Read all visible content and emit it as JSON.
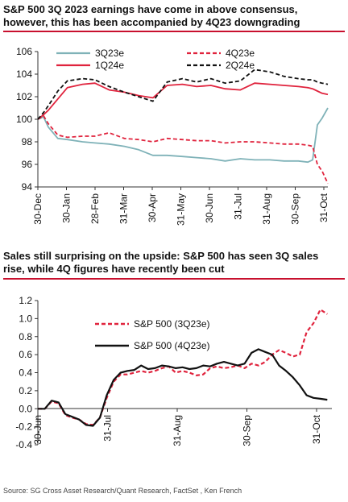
{
  "panel1": {
    "title_line1": "S&P 500 3Q 2023 earnings have come in above consensus,",
    "title_line2": "however, this has been accompanied by 4Q23 downgrading"
  },
  "panel2": {
    "title_line1": "Sales still surprising on the upside: S&P 500 has seen 3Q sales",
    "title_line2": "rise, while 4Q figures have recently been cut"
  },
  "source": "Source: SG Cross Asset Research/Quant Research, FactSet , Ken French",
  "colors": {
    "teal": "#7fb2b8",
    "red": "#e0233d",
    "black": "#111111",
    "accent": "#c8102e"
  },
  "chart_data": [
    {
      "type": "line",
      "xlim": [
        "2022-12-30",
        "2023-10-31"
      ],
      "ylim": [
        94,
        106
      ],
      "yticks": [
        94,
        96,
        98,
        100,
        102,
        104,
        106
      ],
      "xtick_labels": [
        "30-Dec",
        "30-Jan",
        "28-Feb",
        "31-Mar",
        "30-Apr",
        "31-May",
        "30-Jun",
        "31-Jul",
        "31-Aug",
        "30-Sep",
        "31-Oct"
      ],
      "grid": false,
      "legend_position": "top",
      "series": [
        {
          "name": "3Q23e",
          "color": "#7fb2b8",
          "dash": "solid",
          "x": [
            "2022-12-30",
            "2023-01-05",
            "2023-01-10",
            "2023-01-20",
            "2023-01-30",
            "2023-02-15",
            "2023-02-28",
            "2023-03-15",
            "2023-03-31",
            "2023-04-15",
            "2023-04-30",
            "2023-05-15",
            "2023-05-31",
            "2023-06-15",
            "2023-06-30",
            "2023-07-15",
            "2023-07-31",
            "2023-08-15",
            "2023-08-31",
            "2023-09-15",
            "2023-09-30",
            "2023-10-10",
            "2023-10-15",
            "2023-10-20",
            "2023-10-25",
            "2023-10-31"
          ],
          "y": [
            100.0,
            100.2,
            99.3,
            98.3,
            98.2,
            98.0,
            97.9,
            97.8,
            97.6,
            97.3,
            96.8,
            96.8,
            96.7,
            96.6,
            96.5,
            96.3,
            96.5,
            96.4,
            96.4,
            96.3,
            96.3,
            96.2,
            96.4,
            99.5,
            100.1,
            101.0
          ]
        },
        {
          "name": "4Q23e",
          "color": "#e0233d",
          "dash": "dashed",
          "x": [
            "2022-12-30",
            "2023-01-05",
            "2023-01-10",
            "2023-01-20",
            "2023-01-30",
            "2023-02-15",
            "2023-02-28",
            "2023-03-15",
            "2023-03-31",
            "2023-04-15",
            "2023-04-30",
            "2023-05-15",
            "2023-05-31",
            "2023-06-15",
            "2023-06-30",
            "2023-07-15",
            "2023-07-31",
            "2023-08-15",
            "2023-08-31",
            "2023-09-15",
            "2023-09-30",
            "2023-10-10",
            "2023-10-15",
            "2023-10-20",
            "2023-10-25",
            "2023-10-31"
          ],
          "y": [
            100.0,
            100.3,
            99.6,
            98.6,
            98.4,
            98.5,
            98.5,
            98.8,
            98.3,
            98.2,
            98.0,
            98.3,
            98.2,
            98.1,
            98.1,
            97.9,
            98.0,
            98.0,
            97.9,
            97.8,
            97.8,
            97.7,
            97.6,
            96.0,
            95.4,
            94.3
          ]
        },
        {
          "name": "1Q24e",
          "color": "#e0233d",
          "dash": "solid",
          "x": [
            "2022-12-30",
            "2023-01-05",
            "2023-01-10",
            "2023-01-20",
            "2023-01-30",
            "2023-02-15",
            "2023-02-28",
            "2023-03-15",
            "2023-03-31",
            "2023-04-15",
            "2023-04-30",
            "2023-05-15",
            "2023-05-31",
            "2023-06-15",
            "2023-06-30",
            "2023-07-15",
            "2023-07-31",
            "2023-08-15",
            "2023-08-31",
            "2023-09-15",
            "2023-09-30",
            "2023-10-10",
            "2023-10-15",
            "2023-10-20",
            "2023-10-25",
            "2023-10-31"
          ],
          "y": [
            100.0,
            100.4,
            100.8,
            101.8,
            102.8,
            103.1,
            103.2,
            102.6,
            102.4,
            102.1,
            101.9,
            103.0,
            103.1,
            102.9,
            103.0,
            102.7,
            102.6,
            103.2,
            103.1,
            103.0,
            102.9,
            102.8,
            102.7,
            102.5,
            102.3,
            102.2
          ]
        },
        {
          "name": "2Q24e",
          "color": "#111111",
          "dash": "dashed",
          "x": [
            "2022-12-30",
            "2023-01-05",
            "2023-01-10",
            "2023-01-20",
            "2023-01-30",
            "2023-02-15",
            "2023-02-28",
            "2023-03-15",
            "2023-03-31",
            "2023-04-15",
            "2023-04-30",
            "2023-05-15",
            "2023-05-31",
            "2023-06-15",
            "2023-06-30",
            "2023-07-15",
            "2023-07-31",
            "2023-08-15",
            "2023-08-31",
            "2023-09-15",
            "2023-09-30",
            "2023-10-10",
            "2023-10-15",
            "2023-10-20",
            "2023-10-25",
            "2023-10-31"
          ],
          "y": [
            100.0,
            100.6,
            101.2,
            102.5,
            103.4,
            103.6,
            103.5,
            102.9,
            102.4,
            102.0,
            101.6,
            103.3,
            103.6,
            103.3,
            103.6,
            103.2,
            103.4,
            104.4,
            104.2,
            103.8,
            103.6,
            103.5,
            103.5,
            103.3,
            103.2,
            103.1
          ]
        }
      ]
    },
    {
      "type": "line",
      "xlim": [
        "2023-06-30",
        "2023-11-05"
      ],
      "ylim": [
        -0.4,
        1.2
      ],
      "yticks": [
        -0.4,
        -0.2,
        0.0,
        0.2,
        0.4,
        0.6,
        0.8,
        1.0,
        1.2
      ],
      "xtick_labels": [
        "30-Jun",
        "31-Jul",
        "31-Aug",
        "30-Sep",
        "31-Oct"
      ],
      "grid": false,
      "legend_position": "upper-left",
      "series": [
        {
          "name": "S&P 500 (3Q23e)",
          "color": "#e0233d",
          "dash": "dashed",
          "x": [
            "2023-06-30",
            "2023-07-03",
            "2023-07-06",
            "2023-07-09",
            "2023-07-12",
            "2023-07-15",
            "2023-07-18",
            "2023-07-21",
            "2023-07-24",
            "2023-07-27",
            "2023-07-30",
            "2023-08-02",
            "2023-08-05",
            "2023-08-08",
            "2023-08-11",
            "2023-08-14",
            "2023-08-17",
            "2023-08-20",
            "2023-08-23",
            "2023-08-26",
            "2023-08-29",
            "2023-09-01",
            "2023-09-04",
            "2023-09-07",
            "2023-09-10",
            "2023-09-13",
            "2023-09-16",
            "2023-09-19",
            "2023-09-22",
            "2023-09-25",
            "2023-09-28",
            "2023-10-01",
            "2023-10-04",
            "2023-10-07",
            "2023-10-10",
            "2023-10-13",
            "2023-10-16",
            "2023-10-19",
            "2023-10-22",
            "2023-10-25",
            "2023-10-28",
            "2023-10-31",
            "2023-11-03"
          ],
          "y": [
            0.0,
            0.0,
            0.08,
            0.06,
            -0.07,
            -0.1,
            -0.12,
            -0.17,
            -0.18,
            -0.1,
            0.12,
            0.3,
            0.38,
            0.38,
            0.4,
            0.42,
            0.4,
            0.42,
            0.45,
            0.47,
            0.4,
            0.42,
            0.4,
            0.37,
            0.38,
            0.45,
            0.47,
            0.45,
            0.46,
            0.48,
            0.45,
            0.5,
            0.48,
            0.52,
            0.6,
            0.65,
            0.62,
            0.58,
            0.6,
            0.85,
            0.95,
            1.1,
            1.05
          ]
        },
        {
          "name": "S&P 500 (4Q23e)",
          "color": "#111111",
          "dash": "solid",
          "x": [
            "2023-06-30",
            "2023-07-03",
            "2023-07-06",
            "2023-07-09",
            "2023-07-12",
            "2023-07-15",
            "2023-07-18",
            "2023-07-21",
            "2023-07-24",
            "2023-07-27",
            "2023-07-30",
            "2023-08-02",
            "2023-08-05",
            "2023-08-08",
            "2023-08-11",
            "2023-08-14",
            "2023-08-17",
            "2023-08-20",
            "2023-08-23",
            "2023-08-26",
            "2023-08-29",
            "2023-09-01",
            "2023-09-04",
            "2023-09-07",
            "2023-09-10",
            "2023-09-13",
            "2023-09-16",
            "2023-09-19",
            "2023-09-22",
            "2023-09-25",
            "2023-09-28",
            "2023-10-01",
            "2023-10-04",
            "2023-10-07",
            "2023-10-10",
            "2023-10-13",
            "2023-10-16",
            "2023-10-19",
            "2023-10-22",
            "2023-10-25",
            "2023-10-28",
            "2023-10-31",
            "2023-11-03"
          ],
          "y": [
            0.0,
            0.0,
            0.09,
            0.07,
            -0.06,
            -0.09,
            -0.12,
            -0.18,
            -0.19,
            -0.1,
            0.15,
            0.32,
            0.4,
            0.42,
            0.43,
            0.48,
            0.44,
            0.45,
            0.48,
            0.47,
            0.45,
            0.46,
            0.44,
            0.45,
            0.48,
            0.47,
            0.5,
            0.52,
            0.5,
            0.48,
            0.5,
            0.62,
            0.66,
            0.63,
            0.6,
            0.48,
            0.42,
            0.35,
            0.26,
            0.15,
            0.12,
            0.11,
            0.1
          ]
        }
      ]
    }
  ]
}
